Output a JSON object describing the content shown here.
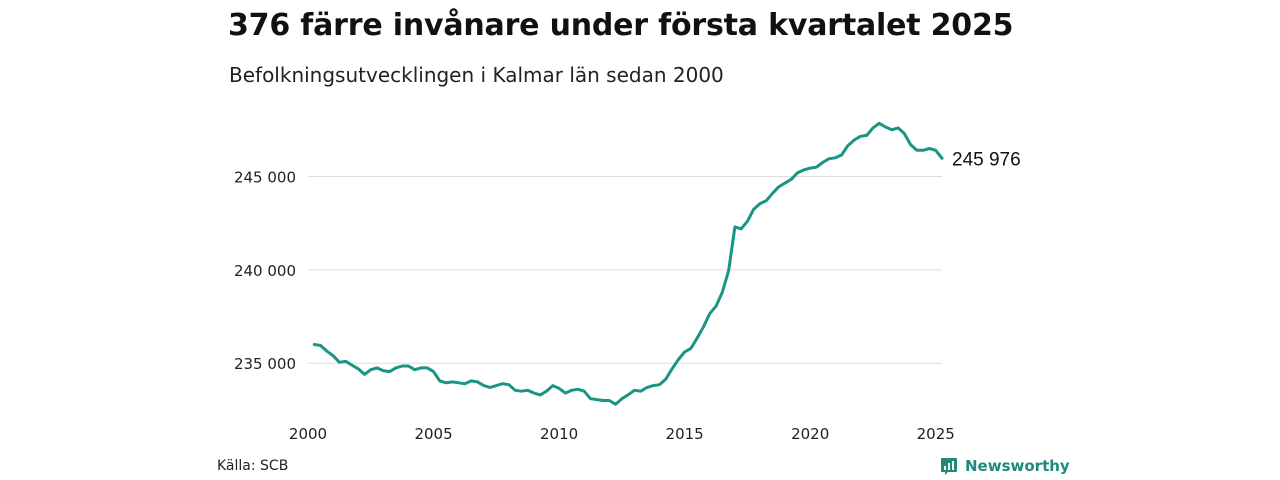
{
  "header": {
    "title": "376 färre invånare under första kvartalet 2025",
    "subtitle": "Befolkningsutvecklingen i Kalmar län sedan 2000"
  },
  "footer": {
    "source": "Källa: SCB",
    "brand": "Newsworthy",
    "brand_icon": "bar-chart-badge-icon"
  },
  "colors": {
    "line": "#1a9583",
    "grid": "#dddddd",
    "brand": "#1f8a7b"
  },
  "chart_data": {
    "type": "line",
    "title": "376 färre invånare under första kvartalet 2025",
    "subtitle": "Befolkningsutvecklingen i Kalmar län sedan 2000",
    "xlabel": "",
    "ylabel": "",
    "xlim": [
      2000,
      2025.25
    ],
    "ylim": [
      232600,
      248400
    ],
    "x_ticks": [
      2000,
      2005,
      2010,
      2015,
      2020,
      2025
    ],
    "x_tick_labels": [
      "2000",
      "2005",
      "2010",
      "2015",
      "2020",
      "2025"
    ],
    "y_ticks": [
      235000,
      240000,
      245000
    ],
    "y_tick_labels": [
      "235 000",
      "240 000",
      "245 000"
    ],
    "grid": "horizontal",
    "last_value_label": "245 976",
    "series": [
      {
        "x": [
          2000.25,
          2000.5,
          2000.75,
          2001,
          2001.25,
          2001.5,
          2001.75,
          2002,
          2002.25,
          2002.5,
          2002.75,
          2003,
          2003.25,
          2003.5,
          2003.75,
          2004,
          2004.25,
          2004.5,
          2004.75,
          2005,
          2005.25,
          2005.5,
          2005.75,
          2006,
          2006.25,
          2006.5,
          2006.75,
          2007,
          2007.25,
          2007.5,
          2007.75,
          2008,
          2008.25,
          2008.5,
          2008.75,
          2009,
          2009.25,
          2009.5,
          2009.75,
          2010,
          2010.25,
          2010.5,
          2010.75,
          2011,
          2011.25,
          2011.5,
          2011.75,
          2012,
          2012.25,
          2012.5,
          2012.75,
          2013,
          2013.25,
          2013.5,
          2013.75,
          2014,
          2014.25,
          2014.5,
          2014.75,
          2015,
          2015.25,
          2015.5,
          2015.75,
          2016,
          2016.25,
          2016.5,
          2016.75,
          2017,
          2017.25,
          2017.5,
          2017.75,
          2018,
          2018.25,
          2018.5,
          2018.75,
          2019,
          2019.25,
          2019.5,
          2019.75,
          2020,
          2020.25,
          2020.5,
          2020.75,
          2021,
          2021.25,
          2021.5,
          2021.75,
          2022,
          2022.25,
          2022.5,
          2022.75,
          2023,
          2023.25,
          2023.5,
          2023.75,
          2024,
          2024.25,
          2024.5,
          2024.75,
          2025,
          2025.25
        ],
        "values": [
          236000,
          235950,
          235650,
          235400,
          235050,
          235100,
          234900,
          234700,
          234400,
          234650,
          234750,
          234600,
          234550,
          234750,
          234850,
          234850,
          234650,
          234750,
          234750,
          234550,
          234050,
          233950,
          234000,
          233950,
          233900,
          234050,
          234000,
          233800,
          233700,
          233800,
          233900,
          233850,
          233550,
          233500,
          233550,
          233400,
          233300,
          233500,
          233800,
          233650,
          233400,
          233550,
          233600,
          233500,
          233100,
          233050,
          233000,
          233000,
          232800,
          233100,
          233300,
          233550,
          233500,
          233700,
          233800,
          233850,
          234150,
          234700,
          235200,
          235600,
          235800,
          236350,
          236950,
          237650,
          238050,
          238800,
          239950,
          242300,
          242200,
          242600,
          243250,
          243550,
          243700,
          244100,
          244450,
          244650,
          244850,
          245200,
          245350,
          245450,
          245500,
          245750,
          245950,
          246000,
          246150,
          246650,
          246950,
          247150,
          247200,
          247600,
          247850,
          247650,
          247500,
          247600,
          247300,
          246700,
          246400,
          246400,
          246500,
          246400,
          245976
        ]
      }
    ]
  }
}
